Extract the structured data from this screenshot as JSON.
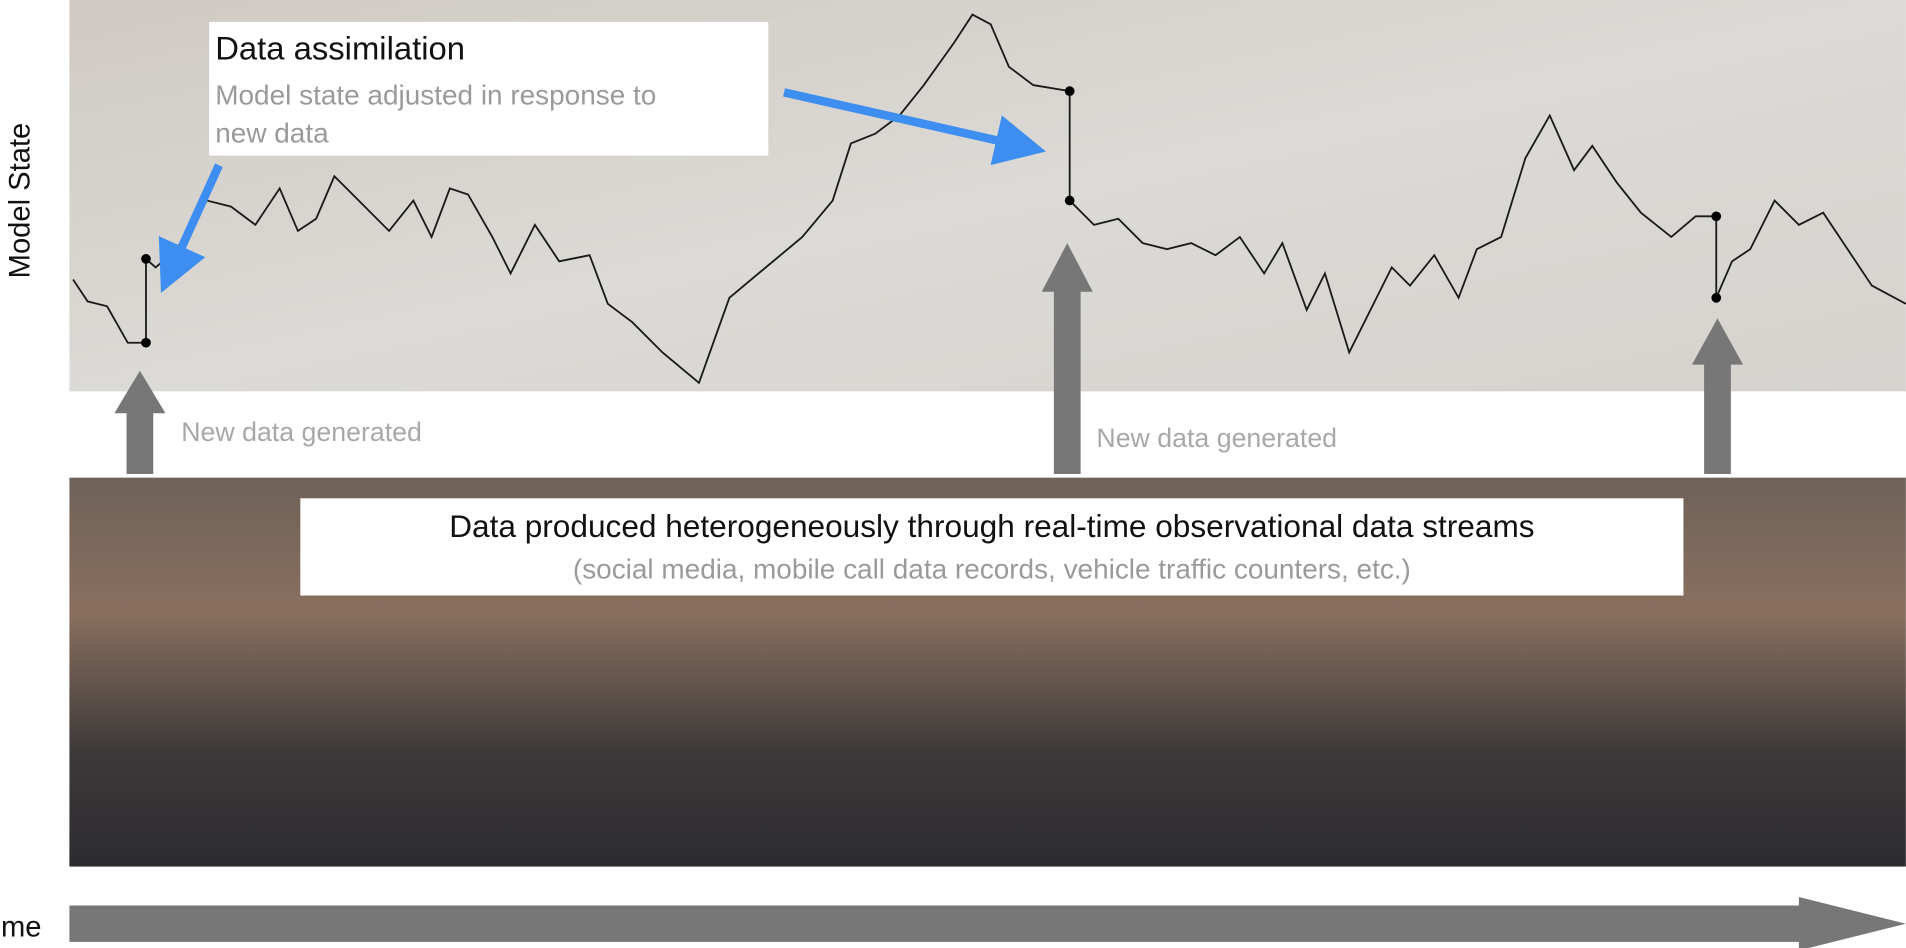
{
  "y_axis_label": "Model State",
  "x_axis_label": "Time",
  "assimilation": {
    "title": "Data assimilation",
    "text_line1": "Model state adjusted in response to",
    "text_line2": "new data"
  },
  "events": [
    "New data generated",
    "New data generated"
  ],
  "streams": {
    "title": "Data produced heterogeneously through real-time observational data streams",
    "subtitle": "(social media, mobile call data records, vehicle traffic counters, etc.)"
  }
}
